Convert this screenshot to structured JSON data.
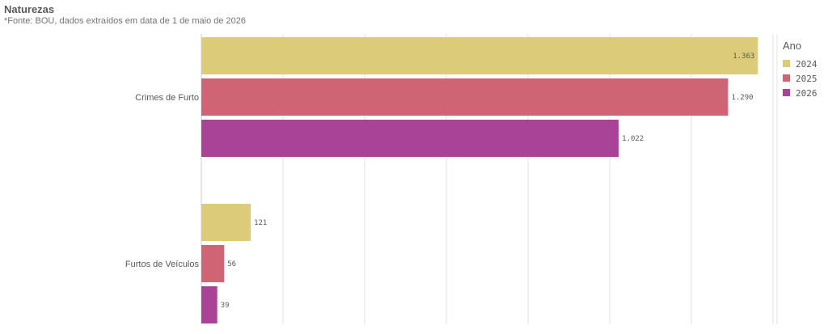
{
  "title": "Naturezas",
  "subtitle": "*Fonte: BOU, dados extraídos em data de 1 de maio de 2026",
  "chart_data": {
    "type": "bar",
    "orientation": "horizontal",
    "categories": [
      "Crimes de Furto",
      "Furtos de Veículos"
    ],
    "series": [
      {
        "name": "2024",
        "color": "#dccb78",
        "values": [
          1363,
          121
        ],
        "labels": [
          "1.363",
          "121"
        ]
      },
      {
        "name": "2025",
        "color": "#cf6474",
        "values": [
          1290,
          56
        ],
        "labels": [
          "1.290",
          "56"
        ]
      },
      {
        "name": "2026",
        "color": "#a84398",
        "values": [
          1022,
          39
        ],
        "labels": [
          "1.022",
          "39"
        ]
      }
    ],
    "xlim": [
      0,
      1400
    ],
    "grid": true,
    "legend": {
      "title": "Ano",
      "position": "right"
    }
  }
}
